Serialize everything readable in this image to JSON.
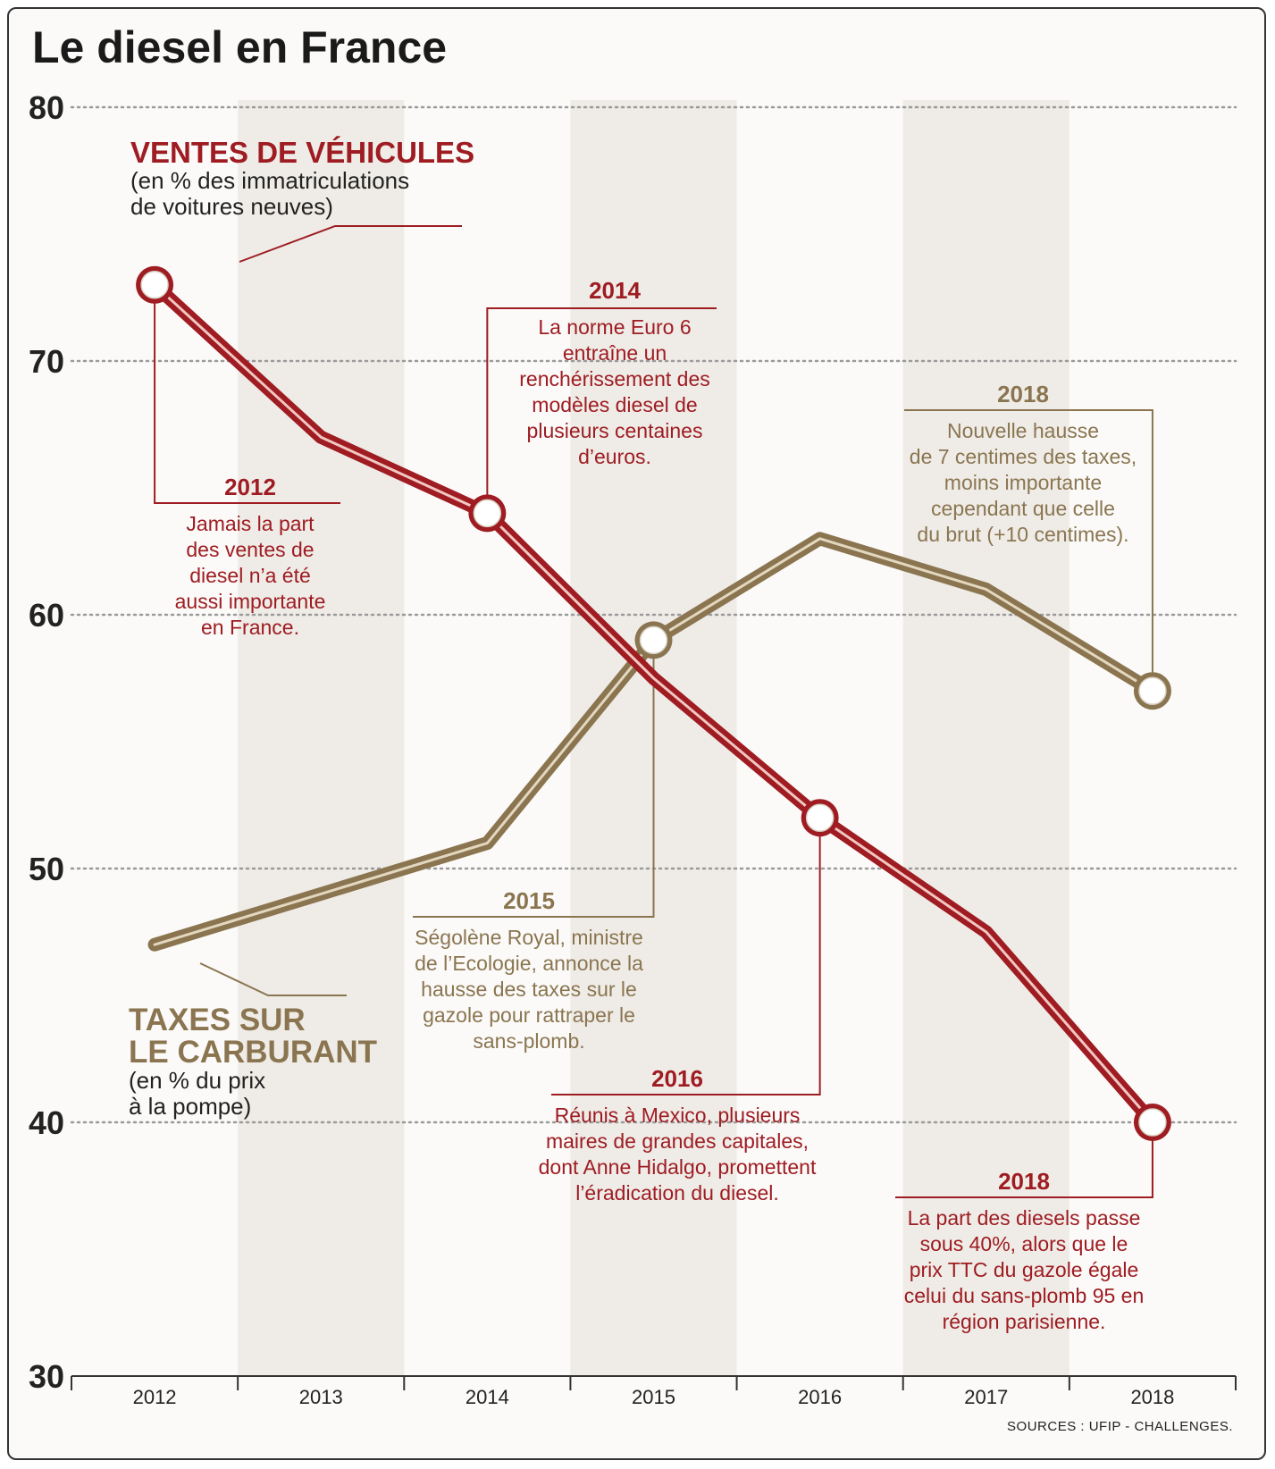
{
  "title": "Le diesel en France",
  "source": "SOURCES : UFIP - CHALLENGES.",
  "colors": {
    "ventes": "#9e1c22",
    "taxes": "#8a7550",
    "grid": "#9a9a9a",
    "band": "#efece7"
  },
  "legend": {
    "ventes": {
      "heading": "VENTES DE VÉHICULES",
      "sub1": "(en % des immatriculations",
      "sub2": "de voitures neuves)"
    },
    "taxes": {
      "heading1": "TAXES SUR",
      "heading2": "LE CARBURANT",
      "sub1": "(en % du prix",
      "sub2": "à la pompe)"
    }
  },
  "annotations": {
    "a2012": {
      "year": "2012",
      "lines": [
        "Jamais la part",
        "des ventes de",
        "diesel n’a été",
        "aussi importante",
        "en France."
      ]
    },
    "a2014": {
      "year": "2014",
      "lines": [
        "La norme Euro 6",
        "entraîne un",
        "renchérissement des",
        "modèles diesel de",
        "plusieurs centaines",
        "d’euros."
      ]
    },
    "a2018top": {
      "year": "2018",
      "lines": [
        "Nouvelle hausse",
        "de 7 centimes des taxes,",
        "moins importante",
        "cependant que celle",
        "du brut (+10 centimes)."
      ]
    },
    "a2015": {
      "year": "2015",
      "lines": [
        "Ségolène Royal, ministre",
        "de l’Ecologie, annonce la",
        "hausse des taxes sur le",
        "gazole pour rattraper le",
        "sans-plomb."
      ]
    },
    "a2016": {
      "year": "2016",
      "lines": [
        "Réunis à Mexico, plusieurs",
        "maires de grandes capitales,",
        "dont Anne Hidalgo, promettent",
        "l’éradication du diesel."
      ]
    },
    "a2018bottom": {
      "year": "2018",
      "lines": [
        "La part des diesels passe",
        "sous 40%, alors que le",
        "prix TTC du gazole égale",
        "celui du sans-plomb 95 en",
        "région parisienne."
      ]
    }
  },
  "chart_data": {
    "type": "line",
    "title": "Le diesel en France",
    "x": [
      "2012",
      "2013",
      "2014",
      "2015",
      "2016",
      "2017",
      "2018"
    ],
    "ylim": [
      30,
      80
    ],
    "yticks": [
      30,
      40,
      50,
      60,
      70,
      80
    ],
    "grid": true,
    "series": [
      {
        "name": "VENTES DE VÉHICULES",
        "values": [
          73,
          67,
          64,
          57.5,
          52,
          47.5,
          40
        ],
        "highlighted": [
          "2012",
          "2014",
          "2016",
          "2018"
        ]
      },
      {
        "name": "TAXES SUR LE CARBURANT",
        "values": [
          47,
          49,
          51,
          59,
          63,
          61,
          57
        ],
        "highlighted": [
          "2015",
          "2018"
        ]
      }
    ]
  }
}
